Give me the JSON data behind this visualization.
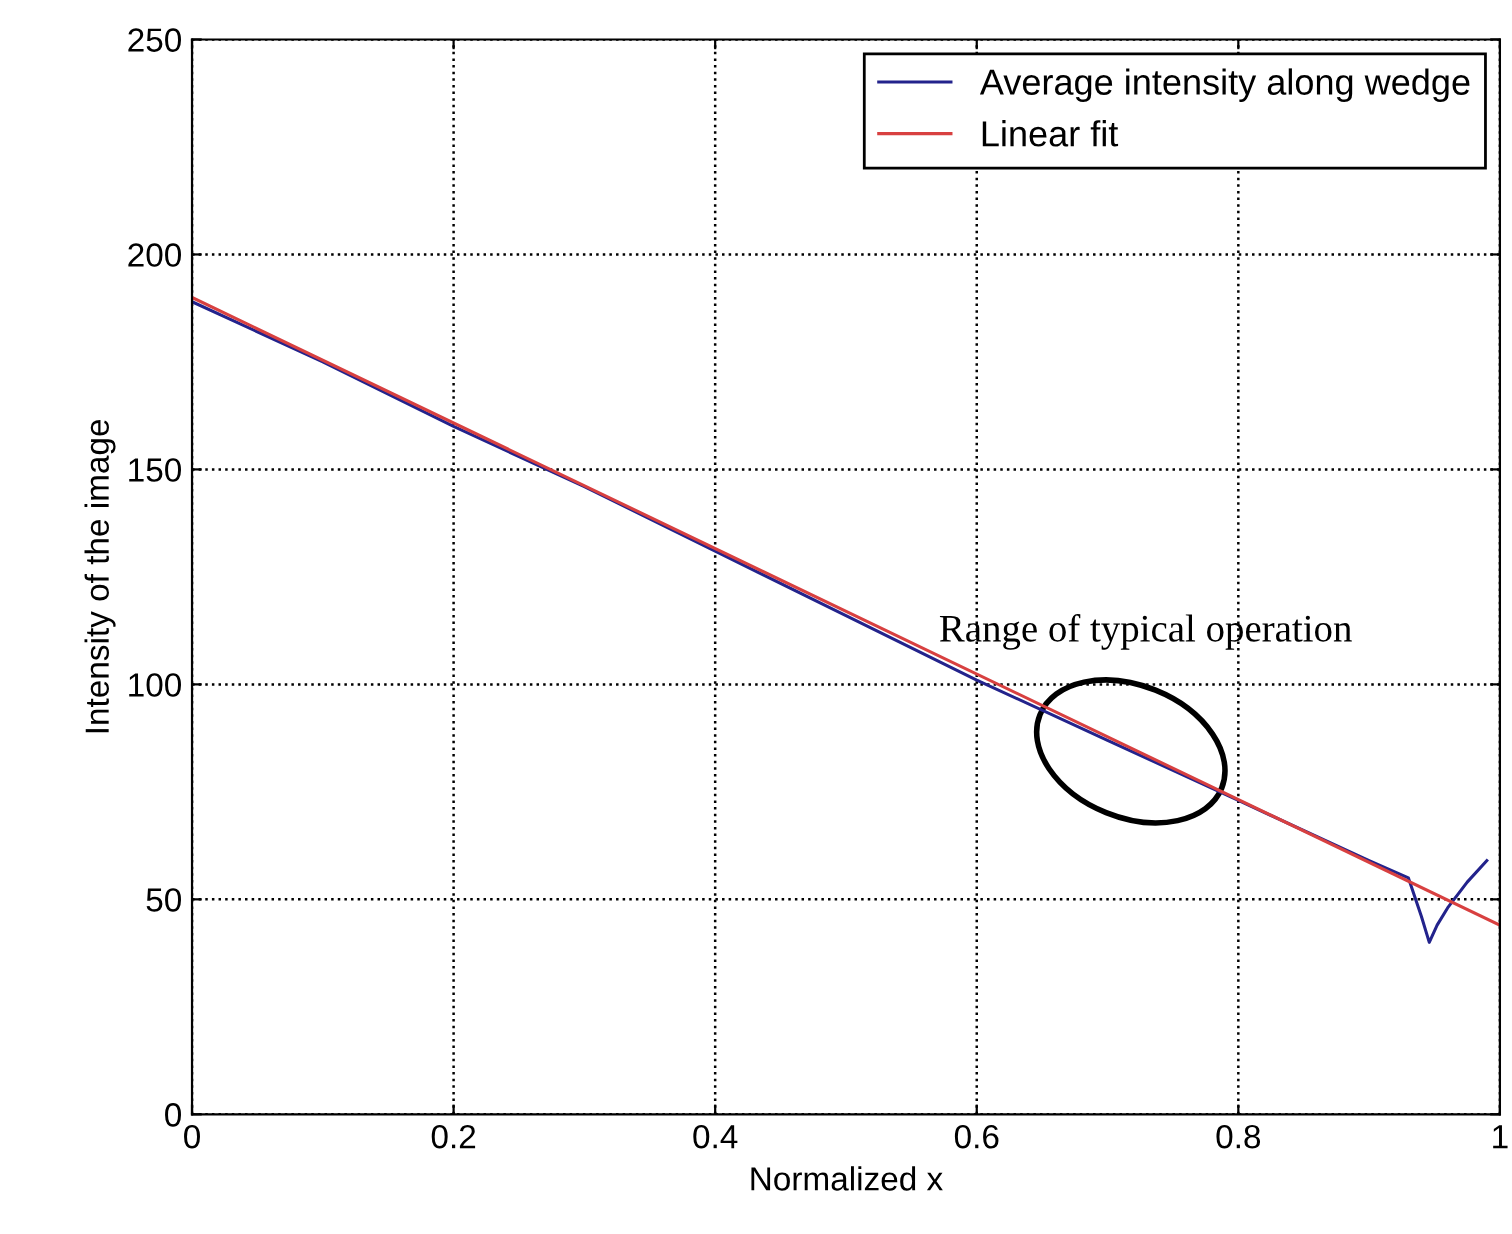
{
  "chart_data": {
    "type": "line",
    "xlabel": "Normalized x",
    "ylabel": "Intensity of the image",
    "xlim": [
      0,
      1
    ],
    "ylim": [
      0,
      250
    ],
    "xticks": [
      0,
      0.2,
      0.4,
      0.6,
      0.8,
      1
    ],
    "yticks": [
      0,
      50,
      100,
      150,
      200,
      250
    ],
    "grid": true,
    "legend": "top right",
    "line_style": "solid",
    "annotations": [
      "Range of typical operation"
    ],
    "series": [
      {
        "name": "Average intensity along wedge",
        "color": "#23238c",
        "x": [
          0,
          0.1,
          0.2,
          0.3,
          0.4,
          0.5,
          0.6,
          0.7,
          0.8,
          0.9,
          0.93,
          0.94,
          0.946,
          0.952,
          0.96,
          0.975,
          0.99
        ],
        "values": [
          189,
          175,
          160,
          146,
          131,
          116,
          101,
          87,
          73,
          59,
          55,
          46,
          40,
          44,
          48,
          54,
          59
        ]
      },
      {
        "name": "Linear fit",
        "color": "#d84040",
        "x": [
          0,
          1
        ],
        "values": [
          190,
          44
        ]
      }
    ]
  }
}
